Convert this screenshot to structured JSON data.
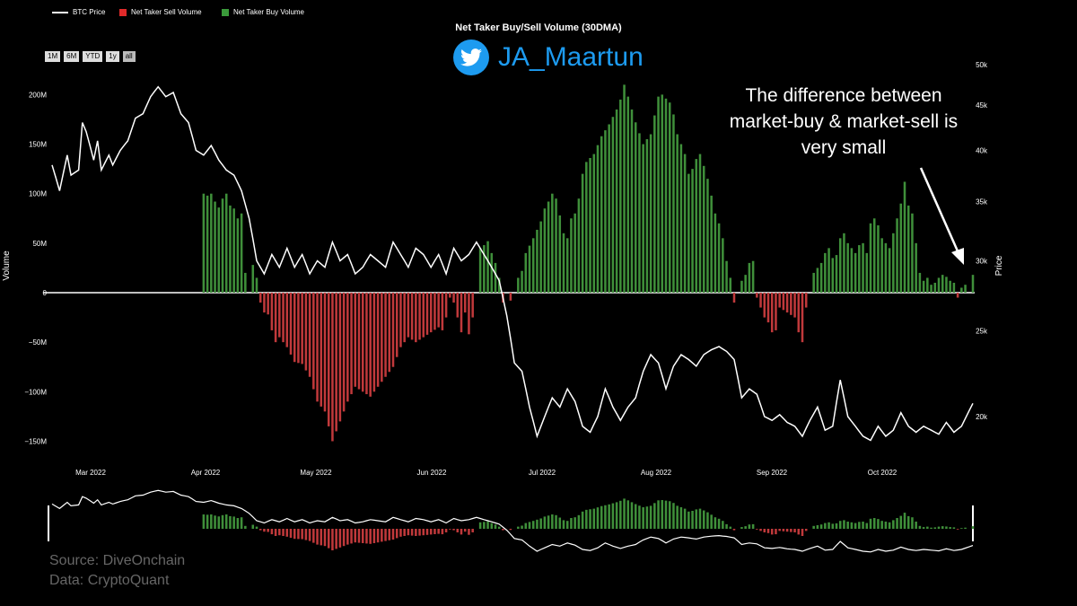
{
  "legend": {
    "btc_price": "BTC Price",
    "sell": "Net Taker Sell Volume",
    "buy": "Net Taker Buy Volume"
  },
  "range_buttons": [
    "1M",
    "6M",
    "YTD",
    "1y",
    "all"
  ],
  "title": "Net Taker Buy/Sell Volume (30DMA)",
  "twitter_handle": "JA_Maartun",
  "annotation": "The difference between market-buy & market-sell is very small",
  "source_line1": "Source: DiveOnchain",
  "source_line2": "Data: CryptoQuant",
  "colors": {
    "buy": "#3f8f3a",
    "sell": "#c0393b",
    "price": "#ffffff",
    "twitter": "#1d9bf0"
  },
  "chart_data": {
    "type": "bar",
    "title": "Net Taker Buy/Sell Volume (30DMA)",
    "ylabel": "Volume",
    "y2label": "Price",
    "ylim": [
      -150000000,
      200000000
    ],
    "y_ticks": [
      "−150M",
      "−100M",
      "−50M",
      "0",
      "50M",
      "100M",
      "150M",
      "200M"
    ],
    "y2_ticks": [
      "20k",
      "25k",
      "30k",
      "35k",
      "40k",
      "45k",
      "50k"
    ],
    "x_ticks": [
      "Mar 2022",
      "Apr 2022",
      "May 2022",
      "Jun 2022",
      "Jul 2022",
      "Aug 2022",
      "Sep 2022",
      "Oct 2022"
    ],
    "volume_keypoints": [
      [
        0,
        0
      ],
      [
        39,
        0
      ],
      [
        40,
        100
      ],
      [
        41,
        98
      ],
      [
        42,
        100
      ],
      [
        43,
        92
      ],
      [
        44,
        86
      ],
      [
        45,
        95
      ],
      [
        46,
        100
      ],
      [
        47,
        88
      ],
      [
        48,
        85
      ],
      [
        49,
        75
      ],
      [
        50,
        80
      ],
      [
        51,
        20
      ],
      [
        52,
        0
      ],
      [
        53,
        28
      ],
      [
        54,
        15
      ],
      [
        55,
        -10
      ],
      [
        56,
        -20
      ],
      [
        57,
        -22
      ],
      [
        58,
        -38
      ],
      [
        59,
        -50
      ],
      [
        60,
        -45
      ],
      [
        62,
        -55
      ],
      [
        64,
        -70
      ],
      [
        66,
        -72
      ],
      [
        68,
        -85
      ],
      [
        70,
        -110
      ],
      [
        72,
        -120
      ],
      [
        74,
        -150
      ],
      [
        76,
        -130
      ],
      [
        78,
        -110
      ],
      [
        80,
        -95
      ],
      [
        82,
        -100
      ],
      [
        84,
        -105
      ],
      [
        86,
        -95
      ],
      [
        88,
        -85
      ],
      [
        90,
        -75
      ],
      [
        92,
        -55
      ],
      [
        94,
        -45
      ],
      [
        96,
        -50
      ],
      [
        98,
        -45
      ],
      [
        100,
        -40
      ],
      [
        102,
        -35
      ],
      [
        103,
        -38
      ],
      [
        104,
        -25
      ],
      [
        105,
        -5
      ],
      [
        106,
        -10
      ],
      [
        107,
        -25
      ],
      [
        108,
        -40
      ],
      [
        109,
        -20
      ],
      [
        110,
        -42
      ],
      [
        111,
        -25
      ],
      [
        112,
        0
      ],
      [
        113,
        45
      ],
      [
        114,
        48
      ],
      [
        115,
        52
      ],
      [
        116,
        40
      ],
      [
        117,
        30
      ],
      [
        118,
        15
      ],
      [
        119,
        -10
      ],
      [
        120,
        0
      ],
      [
        121,
        -8
      ],
      [
        122,
        0
      ],
      [
        123,
        15
      ],
      [
        124,
        22
      ],
      [
        125,
        40
      ],
      [
        127,
        55
      ],
      [
        129,
        72
      ],
      [
        130,
        85
      ],
      [
        131,
        92
      ],
      [
        132,
        100
      ],
      [
        133,
        95
      ],
      [
        134,
        78
      ],
      [
        135,
        60
      ],
      [
        136,
        55
      ],
      [
        137,
        75
      ],
      [
        138,
        80
      ],
      [
        139,
        95
      ],
      [
        140,
        120
      ],
      [
        141,
        132
      ],
      [
        143,
        140
      ],
      [
        145,
        158
      ],
      [
        147,
        170
      ],
      [
        149,
        185
      ],
      [
        150,
        195
      ],
      [
        151,
        210
      ],
      [
        152,
        198
      ],
      [
        153,
        185
      ],
      [
        154,
        172
      ],
      [
        156,
        150
      ],
      [
        158,
        160
      ],
      [
        160,
        198
      ],
      [
        161,
        200
      ],
      [
        163,
        192
      ],
      [
        164,
        180
      ],
      [
        165,
        160
      ],
      [
        166,
        150
      ],
      [
        167,
        140
      ],
      [
        168,
        120
      ],
      [
        169,
        125
      ],
      [
        170,
        135
      ],
      [
        171,
        140
      ],
      [
        172,
        128
      ],
      [
        173,
        115
      ],
      [
        174,
        98
      ],
      [
        175,
        80
      ],
      [
        176,
        70
      ],
      [
        177,
        55
      ],
      [
        178,
        32
      ],
      [
        179,
        15
      ],
      [
        180,
        -10
      ],
      [
        181,
        0
      ],
      [
        182,
        12
      ],
      [
        183,
        18
      ],
      [
        184,
        30
      ],
      [
        185,
        32
      ],
      [
        186,
        -5
      ],
      [
        187,
        -15
      ],
      [
        188,
        -25
      ],
      [
        189,
        -30
      ],
      [
        190,
        -40
      ],
      [
        191,
        -38
      ],
      [
        192,
        -15
      ],
      [
        194,
        -20
      ],
      [
        196,
        -25
      ],
      [
        197,
        -40
      ],
      [
        198,
        -50
      ],
      [
        199,
        -15
      ],
      [
        200,
        0
      ],
      [
        201,
        20
      ],
      [
        202,
        25
      ],
      [
        203,
        30
      ],
      [
        204,
        40
      ],
      [
        205,
        45
      ],
      [
        206,
        35
      ],
      [
        207,
        38
      ],
      [
        208,
        55
      ],
      [
        209,
        60
      ],
      [
        210,
        50
      ],
      [
        211,
        45
      ],
      [
        212,
        40
      ],
      [
        213,
        48
      ],
      [
        214,
        50
      ],
      [
        215,
        40
      ],
      [
        216,
        70
      ],
      [
        217,
        75
      ],
      [
        218,
        68
      ],
      [
        219,
        55
      ],
      [
        220,
        50
      ],
      [
        221,
        45
      ],
      [
        222,
        60
      ],
      [
        223,
        75
      ],
      [
        224,
        90
      ],
      [
        225,
        112
      ],
      [
        226,
        88
      ],
      [
        227,
        80
      ],
      [
        228,
        50
      ],
      [
        229,
        20
      ],
      [
        230,
        12
      ],
      [
        231,
        15
      ],
      [
        232,
        8
      ],
      [
        233,
        10
      ],
      [
        234,
        15
      ],
      [
        235,
        18
      ],
      [
        236,
        16
      ],
      [
        237,
        12
      ],
      [
        238,
        10
      ],
      [
        239,
        -5
      ],
      [
        240,
        5
      ],
      [
        241,
        8
      ],
      [
        242,
        0
      ],
      [
        243,
        18
      ]
    ],
    "volume_units": "millions",
    "price_keypoints": [
      [
        0,
        38500
      ],
      [
        2,
        36000
      ],
      [
        4,
        39500
      ],
      [
        5,
        37500
      ],
      [
        7,
        38000
      ],
      [
        8,
        43000
      ],
      [
        9,
        42000
      ],
      [
        11,
        39000
      ],
      [
        12,
        41000
      ],
      [
        13,
        38000
      ],
      [
        15,
        39500
      ],
      [
        16,
        38500
      ],
      [
        18,
        40000
      ],
      [
        20,
        41000
      ],
      [
        22,
        43500
      ],
      [
        24,
        44000
      ],
      [
        26,
        46000
      ],
      [
        28,
        47200
      ],
      [
        30,
        46000
      ],
      [
        32,
        46500
      ],
      [
        34,
        44000
      ],
      [
        36,
        43000
      ],
      [
        38,
        40000
      ],
      [
        40,
        39500
      ],
      [
        42,
        40500
      ],
      [
        44,
        39000
      ],
      [
        46,
        38000
      ],
      [
        48,
        37500
      ],
      [
        50,
        36000
      ],
      [
        52,
        33500
      ],
      [
        54,
        30000
      ],
      [
        56,
        29000
      ],
      [
        58,
        30500
      ],
      [
        60,
        29500
      ],
      [
        62,
        31000
      ],
      [
        64,
        29500
      ],
      [
        66,
        30500
      ],
      [
        68,
        29000
      ],
      [
        70,
        30000
      ],
      [
        72,
        29500
      ],
      [
        74,
        31500
      ],
      [
        76,
        30000
      ],
      [
        78,
        30500
      ],
      [
        80,
        29000
      ],
      [
        82,
        29500
      ],
      [
        84,
        30500
      ],
      [
        86,
        30000
      ],
      [
        88,
        29500
      ],
      [
        90,
        31500
      ],
      [
        92,
        30500
      ],
      [
        94,
        29500
      ],
      [
        96,
        31000
      ],
      [
        98,
        30500
      ],
      [
        100,
        29500
      ],
      [
        102,
        30500
      ],
      [
        104,
        29000
      ],
      [
        106,
        31000
      ],
      [
        108,
        30000
      ],
      [
        110,
        30500
      ],
      [
        112,
        31500
      ],
      [
        114,
        30500
      ],
      [
        116,
        29500
      ],
      [
        118,
        28500
      ],
      [
        120,
        26000
      ],
      [
        122,
        23000
      ],
      [
        124,
        22500
      ],
      [
        126,
        20500
      ],
      [
        128,
        19000
      ],
      [
        130,
        20000
      ],
      [
        132,
        21000
      ],
      [
        134,
        20500
      ],
      [
        136,
        21500
      ],
      [
        138,
        20800
      ],
      [
        140,
        19500
      ],
      [
        142,
        19200
      ],
      [
        144,
        20000
      ],
      [
        146,
        21500
      ],
      [
        148,
        20500
      ],
      [
        150,
        19800
      ],
      [
        152,
        20500
      ],
      [
        154,
        21000
      ],
      [
        156,
        22500
      ],
      [
        158,
        23500
      ],
      [
        160,
        23000
      ],
      [
        162,
        21500
      ],
      [
        164,
        22800
      ],
      [
        166,
        23500
      ],
      [
        168,
        23200
      ],
      [
        170,
        22800
      ],
      [
        172,
        23500
      ],
      [
        174,
        23800
      ],
      [
        176,
        24000
      ],
      [
        178,
        23700
      ],
      [
        180,
        23200
      ],
      [
        182,
        21000
      ],
      [
        184,
        21500
      ],
      [
        186,
        21200
      ],
      [
        188,
        20000
      ],
      [
        190,
        19800
      ],
      [
        192,
        20100
      ],
      [
        194,
        19700
      ],
      [
        196,
        19500
      ],
      [
        198,
        19000
      ],
      [
        200,
        19800
      ],
      [
        202,
        20500
      ],
      [
        204,
        19300
      ],
      [
        206,
        19500
      ],
      [
        208,
        22000
      ],
      [
        210,
        20000
      ],
      [
        212,
        19500
      ],
      [
        214,
        19000
      ],
      [
        216,
        18800
      ],
      [
        218,
        19500
      ],
      [
        220,
        19000
      ],
      [
        222,
        19300
      ],
      [
        224,
        20200
      ],
      [
        226,
        19500
      ],
      [
        228,
        19200
      ],
      [
        230,
        19500
      ],
      [
        232,
        19300
      ],
      [
        234,
        19100
      ],
      [
        236,
        19700
      ],
      [
        238,
        19200
      ],
      [
        240,
        19500
      ],
      [
        243,
        20700
      ]
    ]
  }
}
